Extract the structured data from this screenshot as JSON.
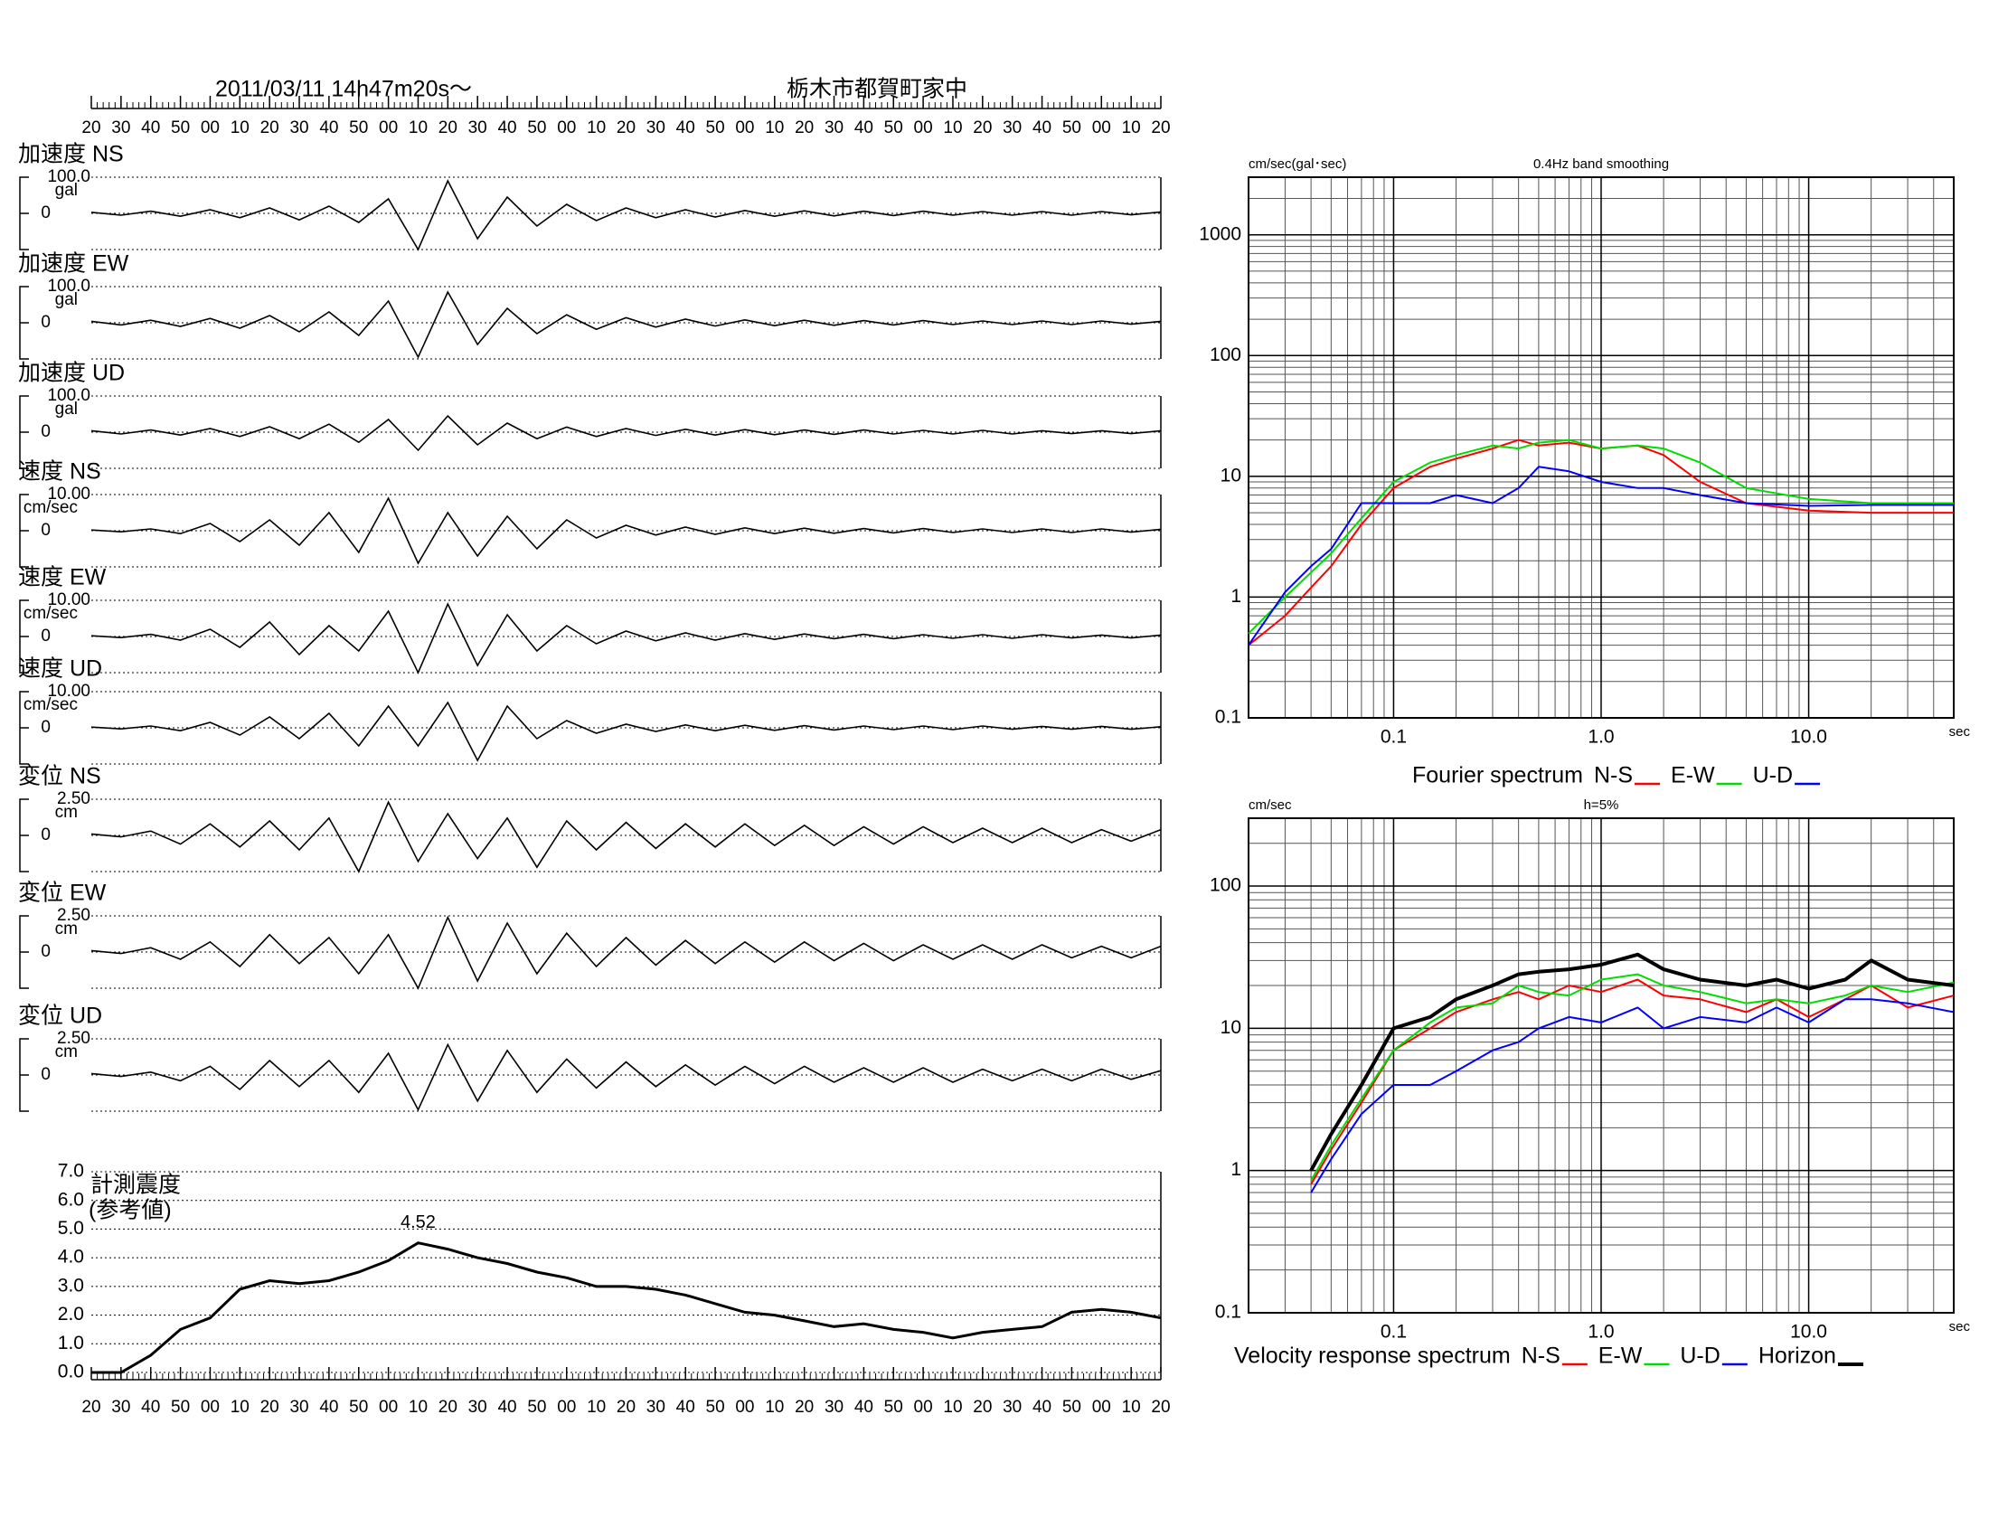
{
  "chart_data": [
    {
      "type": "waveform",
      "title": "2011/03/11  14h47m20s～",
      "subtitle": "栃木市都賀町家中",
      "color": "#000000",
      "xlim": [
        0,
        360
      ],
      "xticks": [
        {
          "value": 0,
          "label": "20"
        },
        {
          "value": 10,
          "label": "30"
        },
        {
          "value": 20,
          "label": "40"
        },
        {
          "value": 30,
          "label": "50"
        },
        {
          "value": 40,
          "label": "00"
        },
        {
          "value": 50,
          "label": "10"
        },
        {
          "value": 60,
          "label": "20"
        },
        {
          "value": 70,
          "label": "30"
        },
        {
          "value": 80,
          "label": "40"
        },
        {
          "value": 90,
          "label": "50"
        },
        {
          "value": 100,
          "label": "00"
        },
        {
          "value": 110,
          "label": "10"
        },
        {
          "value": 120,
          "label": "20"
        },
        {
          "value": 130,
          "label": "30"
        },
        {
          "value": 140,
          "label": "40"
        },
        {
          "value": 150,
          "label": "50"
        },
        {
          "value": 160,
          "label": "00"
        },
        {
          "value": 170,
          "label": "10"
        },
        {
          "value": 180,
          "label": "20"
        },
        {
          "value": 190,
          "label": "30"
        },
        {
          "value": 200,
          "label": "40"
        },
        {
          "value": 210,
          "label": "50"
        },
        {
          "value": 220,
          "label": "00"
        },
        {
          "value": 230,
          "label": "10"
        },
        {
          "value": 240,
          "label": "20"
        },
        {
          "value": 250,
          "label": "30"
        },
        {
          "value": 260,
          "label": "40"
        },
        {
          "value": 270,
          "label": "50"
        },
        {
          "value": 280,
          "label": "00"
        },
        {
          "value": 290,
          "label": "10"
        },
        {
          "value": 300,
          "label": "20"
        },
        {
          "value": 310,
          "label": "30"
        },
        {
          "value": 320,
          "label": "40"
        },
        {
          "value": 330,
          "label": "50"
        },
        {
          "value": 340,
          "label": "00"
        },
        {
          "value": 350,
          "label": "10"
        },
        {
          "value": 360,
          "label": "20"
        }
      ],
      "x": [
        0,
        10,
        20,
        30,
        40,
        50,
        60,
        70,
        80,
        90,
        100,
        110,
        120,
        130,
        140,
        150,
        160,
        170,
        180,
        190,
        200,
        210,
        220,
        230,
        240,
        250,
        260,
        270,
        280,
        290,
        300,
        310,
        320,
        330,
        340,
        350,
        360
      ],
      "panels": [
        {
          "name": "加速度 NS",
          "unit": "gal",
          "ylim": [
            -100,
            100
          ],
          "yticks": [
            0,
            {
              "value": 100,
              "label": "100.0"
            }
          ],
          "values": [
            3,
            -5,
            6,
            -8,
            10,
            -12,
            15,
            -18,
            20,
            -25,
            40,
            -100,
            90,
            -70,
            45,
            -35,
            25,
            -20,
            15,
            -12,
            10,
            -10,
            8,
            -8,
            7,
            -7,
            6,
            -6,
            6,
            -5,
            5,
            -5,
            5,
            -5,
            5,
            -4,
            4
          ]
        },
        {
          "name": "加速度 EW",
          "unit": "gal",
          "ylim": [
            -100,
            100
          ],
          "yticks": [
            0,
            {
              "value": 100,
              "label": "100.0"
            }
          ],
          "values": [
            4,
            -6,
            7,
            -10,
            12,
            -15,
            20,
            -25,
            30,
            -35,
            60,
            -95,
            85,
            -60,
            40,
            -30,
            22,
            -18,
            14,
            -12,
            10,
            -9,
            8,
            -8,
            7,
            -7,
            6,
            -6,
            6,
            -5,
            5,
            -5,
            5,
            -5,
            5,
            -4,
            4
          ]
        },
        {
          "name": "加速度 UD",
          "unit": "gal",
          "ylim": [
            -100,
            100
          ],
          "yticks": [
            0,
            {
              "value": 100,
              "label": "100.0"
            }
          ],
          "values": [
            4,
            -5,
            6,
            -8,
            10,
            -12,
            15,
            -18,
            22,
            -28,
            35,
            -50,
            45,
            -35,
            25,
            -18,
            14,
            -12,
            10,
            -9,
            8,
            -8,
            7,
            -7,
            6,
            -6,
            6,
            -5,
            5,
            -5,
            5,
            -5,
            4,
            -4,
            4,
            -4,
            4
          ]
        },
        {
          "name": "速度 NS",
          "unit": "cm/sec",
          "ylim": [
            -10,
            10
          ],
          "yticks": [
            0,
            {
              "value": 10,
              "label": "10.00"
            }
          ],
          "values": [
            0.2,
            -0.3,
            0.5,
            -0.8,
            2,
            -3,
            3,
            -4,
            5,
            -6,
            9,
            -9,
            5,
            -7,
            4,
            -5,
            3,
            -2,
            1.5,
            -1.2,
            1,
            -1,
            0.8,
            -0.8,
            0.7,
            -0.7,
            0.6,
            -0.6,
            0.6,
            -0.5,
            0.5,
            -0.5,
            0.5,
            -0.5,
            0.5,
            -0.4,
            0.4
          ]
        },
        {
          "name": "速度 EW",
          "unit": "cm/sec",
          "ylim": [
            -10,
            10
          ],
          "yticks": [
            0,
            {
              "value": 10,
              "label": "10.00"
            }
          ],
          "values": [
            0.2,
            -0.3,
            0.6,
            -1,
            2,
            -3,
            4,
            -5,
            3,
            -4,
            7,
            -10,
            9,
            -8,
            6,
            -4,
            3,
            -2,
            1.5,
            -1.2,
            1,
            -1,
            0.8,
            -0.8,
            0.7,
            -0.6,
            0.6,
            -0.6,
            0.5,
            -0.5,
            0.5,
            -0.5,
            0.5,
            -0.4,
            0.4,
            -0.4,
            0.4
          ]
        },
        {
          "name": "速度 UD",
          "unit": "cm/sec",
          "ylim": [
            -10,
            10
          ],
          "yticks": [
            0,
            {
              "value": 10,
              "label": "10.00"
            }
          ],
          "values": [
            0.2,
            -0.3,
            0.5,
            -0.8,
            1.5,
            -2,
            3,
            -3,
            4,
            -5,
            6,
            -5,
            7,
            -9,
            6,
            -3,
            2,
            -1.5,
            1,
            -1,
            0.8,
            -0.8,
            0.7,
            -0.7,
            0.6,
            -0.6,
            0.5,
            -0.5,
            0.5,
            -0.5,
            0.5,
            -0.4,
            0.4,
            -0.4,
            0.4,
            -0.4,
            0.3
          ]
        },
        {
          "name": "変位 NS",
          "unit": "cm",
          "ylim": [
            -2.5,
            2.5
          ],
          "yticks": [
            0,
            {
              "value": 2.5,
              "label": "2.50"
            }
          ],
          "values": [
            0.1,
            -0.1,
            0.3,
            -0.6,
            0.8,
            -0.8,
            1,
            -1,
            1.2,
            -2.5,
            2.3,
            -1.8,
            1.5,
            -1.6,
            1.2,
            -2.2,
            1,
            -1,
            0.9,
            -0.9,
            0.8,
            -0.8,
            0.8,
            -0.7,
            0.7,
            -0.7,
            0.6,
            -0.6,
            0.6,
            -0.5,
            0.5,
            -0.5,
            0.5,
            -0.5,
            0.4,
            -0.4,
            0.4
          ]
        },
        {
          "name": "変位 EW",
          "unit": "cm",
          "ylim": [
            -2.5,
            2.5
          ],
          "yticks": [
            0,
            {
              "value": 2.5,
              "label": "2.50"
            }
          ],
          "values": [
            0.1,
            -0.1,
            0.3,
            -0.5,
            0.7,
            -1,
            1.2,
            -0.8,
            1,
            -1.5,
            1.2,
            -2.5,
            2.4,
            -2,
            2,
            -1.5,
            1.3,
            -1,
            1,
            -0.9,
            0.8,
            -0.8,
            0.7,
            -0.7,
            0.7,
            -0.6,
            0.6,
            -0.6,
            0.5,
            -0.5,
            0.5,
            -0.5,
            0.5,
            -0.4,
            0.4,
            -0.4,
            0.4
          ]
        },
        {
          "name": "変位 UD",
          "unit": "cm",
          "ylim": [
            -2.5,
            2.5
          ],
          "yticks": [
            0,
            {
              "value": 2.5,
              "label": "2.50"
            }
          ],
          "values": [
            0.1,
            -0.1,
            0.2,
            -0.4,
            0.6,
            -1,
            1,
            -0.8,
            1,
            -1.2,
            1.5,
            -2.4,
            2.1,
            -1.8,
            1.7,
            -1.2,
            1.1,
            -0.9,
            0.9,
            -0.8,
            0.7,
            -0.7,
            0.6,
            -0.6,
            0.6,
            -0.5,
            0.5,
            -0.5,
            0.5,
            -0.5,
            0.4,
            -0.4,
            0.4,
            -0.4,
            0.4,
            -0.3,
            0.3
          ]
        }
      ]
    },
    {
      "type": "line",
      "title": "計測震度",
      "subtitle": "(参考値)",
      "color": "#000000",
      "grid": true,
      "xlim": [
        0,
        360
      ],
      "ylim": [
        0,
        7
      ],
      "yticks": [
        {
          "value": 0,
          "label": "0.0"
        },
        {
          "value": 1,
          "label": "1.0"
        },
        {
          "value": 2,
          "label": "2.0"
        },
        {
          "value": 3,
          "label": "3.0"
        },
        {
          "value": 4,
          "label": "4.0"
        },
        {
          "value": 5,
          "label": "5.0"
        },
        {
          "value": 6,
          "label": "6.0"
        },
        {
          "value": 7,
          "label": "7.0"
        }
      ],
      "x": [
        0,
        10,
        20,
        30,
        40,
        50,
        60,
        70,
        80,
        90,
        100,
        110,
        120,
        130,
        140,
        150,
        160,
        170,
        180,
        190,
        200,
        210,
        220,
        230,
        240,
        250,
        260,
        270,
        280,
        290,
        300,
        310,
        320,
        330,
        340,
        350,
        360
      ],
      "values": [
        0,
        0,
        0.6,
        1.5,
        1.9,
        2.9,
        3.2,
        3.1,
        3.2,
        3.5,
        3.9,
        4.52,
        4.3,
        4.0,
        3.8,
        3.5,
        3.3,
        3.0,
        3.0,
        2.9,
        2.7,
        2.4,
        2.1,
        2.0,
        1.8,
        1.6,
        1.7,
        1.5,
        1.4,
        1.2,
        1.4,
        1.5,
        1.6,
        2.1,
        2.2,
        2.1,
        1.9
      ],
      "annotation": {
        "x": 110,
        "y": 4.52
      }
    },
    {
      "type": "loglog",
      "title": "0.4Hz band smoothing",
      "ylabel": "cm/sec(gal･sec)",
      "xlabel": "sec",
      "caption": "Fourier spectrum",
      "log": true,
      "grid": true,
      "xlim": [
        0.02,
        50
      ],
      "ylim": [
        0.1,
        3000
      ],
      "xticks": [
        0.1,
        {
          "value": 1,
          "label": "1.0"
        },
        {
          "value": 10,
          "label": "10.0"
        }
      ],
      "yticks": [
        0.1,
        1,
        10,
        100,
        1000
      ],
      "x": [
        0.02,
        0.03,
        0.04,
        0.05,
        0.07,
        0.1,
        0.15,
        0.2,
        0.3,
        0.4,
        0.5,
        0.7,
        1,
        1.5,
        2,
        3,
        5,
        10,
        20,
        50
      ],
      "series": [
        {
          "name": "N-S",
          "color": "#ff0000",
          "values": [
            0.4,
            0.7,
            1.2,
            1.8,
            4,
            8,
            12,
            14,
            17,
            20,
            18,
            19,
            17,
            18,
            15,
            9,
            6,
            5.2,
            5,
            5
          ]
        },
        {
          "name": "E-W",
          "color": "#00dd00",
          "values": [
            0.5,
            1,
            1.6,
            2.3,
            4.5,
            9,
            13,
            15,
            18,
            17,
            19,
            20,
            17,
            18,
            17,
            13,
            8,
            6.5,
            6,
            6
          ]
        },
        {
          "name": "U-D",
          "color": "#0000ff",
          "values": [
            0.4,
            1.1,
            1.8,
            2.5,
            6,
            6,
            6,
            7,
            6,
            8,
            12,
            11,
            9,
            8,
            8,
            7,
            6,
            5.7,
            5.8,
            5.8
          ]
        }
      ]
    },
    {
      "type": "loglog",
      "title": "h=5%",
      "ylabel": "cm/sec",
      "xlabel": "sec",
      "caption": "Velocity response spectrum",
      "log": true,
      "grid": true,
      "xlim": [
        0.02,
        50
      ],
      "ylim": [
        0.1,
        300
      ],
      "xticks": [
        0.1,
        {
          "value": 1,
          "label": "1.0"
        },
        {
          "value": 10,
          "label": "10.0"
        }
      ],
      "yticks": [
        0.1,
        1,
        10,
        100
      ],
      "x": [
        0.04,
        0.05,
        0.07,
        0.1,
        0.15,
        0.2,
        0.3,
        0.4,
        0.5,
        0.7,
        1,
        1.5,
        2,
        3,
        5,
        7,
        10,
        15,
        20,
        30,
        50
      ],
      "series": [
        {
          "name": "N-S",
          "color": "#ff0000",
          "values": [
            0.8,
            1.4,
            3,
            7,
            10,
            13,
            16,
            18,
            16,
            20,
            18,
            22,
            17,
            16,
            13,
            16,
            12,
            16,
            20,
            14,
            17
          ]
        },
        {
          "name": "E-W",
          "color": "#00dd00",
          "values": [
            0.85,
            1.5,
            3.2,
            7,
            11,
            14,
            15,
            20,
            18,
            17,
            22,
            24,
            20,
            18,
            15,
            16,
            15,
            17,
            20,
            18,
            21
          ]
        },
        {
          "name": "U-D",
          "color": "#0000ff",
          "values": [
            0.7,
            1.2,
            2.5,
            4,
            4,
            5,
            7,
            8,
            10,
            12,
            11,
            14,
            10,
            12,
            11,
            14,
            11,
            16,
            16,
            15,
            13
          ]
        },
        {
          "name": "Horizon",
          "color": "#000000",
          "width": 4,
          "values": [
            1,
            1.8,
            4,
            10,
            12,
            16,
            20,
            24,
            25,
            26,
            28,
            33,
            26,
            22,
            20,
            22,
            19,
            22,
            30,
            22,
            20
          ]
        }
      ]
    }
  ]
}
